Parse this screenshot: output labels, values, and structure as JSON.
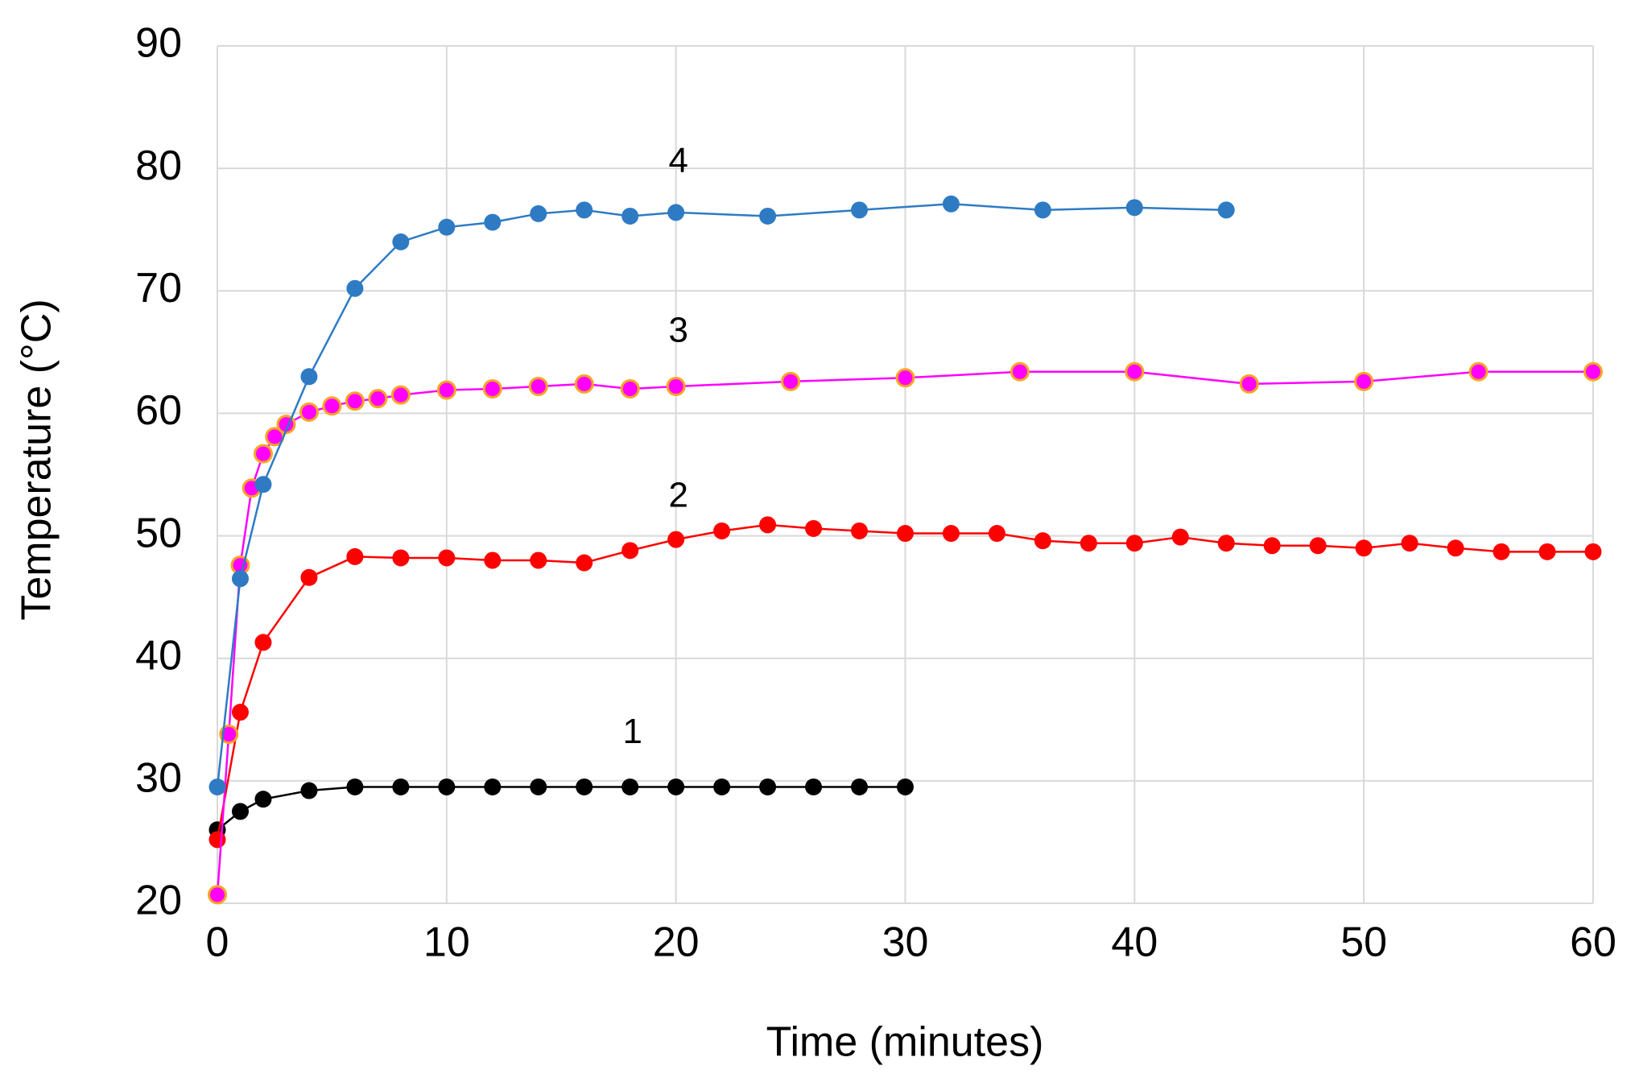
{
  "chart_data": {
    "type": "line",
    "xlabel": "Time (minutes)",
    "ylabel": "Temperature (°C)",
    "xlim": [
      0,
      60
    ],
    "xticks": [
      0,
      10,
      20,
      30,
      40,
      50,
      60
    ],
    "ylim": [
      20,
      90
    ],
    "yticks": [
      20,
      30,
      40,
      50,
      60,
      70,
      80,
      90
    ],
    "grid": true,
    "series": [
      {
        "name": "1",
        "color": "#000000",
        "x": [
          0,
          1,
          2,
          4,
          6,
          8,
          10,
          12,
          14,
          16,
          18,
          20,
          22,
          24,
          26,
          28,
          30
        ],
        "values": [
          26,
          27.5,
          28.5,
          29.2,
          29.5,
          29.5,
          29.5,
          29.5,
          29.5,
          29.5,
          29.5,
          29.5,
          29.5,
          29.5,
          29.5,
          29.5,
          29.5
        ]
      },
      {
        "name": "2",
        "color": "#ff0000",
        "x": [
          0,
          1,
          2,
          4,
          6,
          8,
          10,
          12,
          14,
          16,
          18,
          20,
          22,
          24,
          26,
          28,
          30,
          32,
          34,
          36,
          38,
          40,
          42,
          44,
          46,
          48,
          50,
          52,
          54,
          56,
          58,
          60
        ],
        "values": [
          25.2,
          35.6,
          41.3,
          46.6,
          48.3,
          48.2,
          48.2,
          48.0,
          48.0,
          47.8,
          48.8,
          49.7,
          50.4,
          50.9,
          50.6,
          50.4,
          50.2,
          50.2,
          50.2,
          49.6,
          49.4,
          49.4,
          49.9,
          49.4,
          49.2,
          49.2,
          49.0,
          49.4,
          49.0,
          48.7,
          48.7,
          48.7
        ]
      },
      {
        "name": "3",
        "color": "#ff00ff",
        "edgecolor": "#f5a623",
        "x": [
          0,
          0.5,
          1,
          1.5,
          2,
          2.5,
          3,
          4,
          5,
          6,
          7,
          8,
          10,
          12,
          14,
          16,
          18,
          20,
          25,
          30,
          35,
          40,
          45,
          50,
          55,
          60
        ],
        "values": [
          20.7,
          33.8,
          47.6,
          53.9,
          56.7,
          58.1,
          59.1,
          60.1,
          60.6,
          61.0,
          61.2,
          61.5,
          61.9,
          62.0,
          62.2,
          62.4,
          62.0,
          62.2,
          62.6,
          62.9,
          63.4,
          63.4,
          62.4,
          62.6,
          63.4,
          63.4
        ]
      },
      {
        "name": "4",
        "color": "#2e7bc4",
        "x": [
          0,
          1,
          2,
          4,
          6,
          8,
          10,
          12,
          14,
          16,
          18,
          20,
          24,
          28,
          32,
          36,
          40,
          44
        ],
        "values": [
          29.5,
          46.5,
          54.2,
          63.0,
          70.2,
          74.0,
          75.2,
          75.6,
          76.3,
          76.6,
          76.1,
          76.4,
          76.1,
          76.6,
          77.1,
          76.6,
          76.8,
          76.6
        ]
      }
    ]
  }
}
